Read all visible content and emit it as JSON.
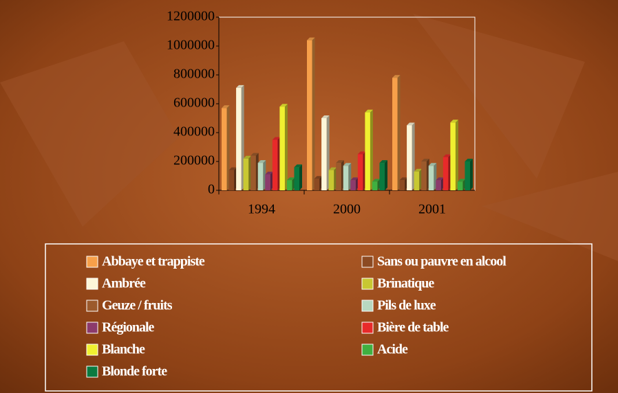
{
  "chart_data": {
    "type": "bar",
    "categories": [
      "1994",
      "2000",
      "2001"
    ],
    "series": [
      {
        "name": "Abbaye et trappiste",
        "color": "#f7a04a",
        "values": [
          570000,
          1040000,
          780000
        ]
      },
      {
        "name": "Sans ou pauvre en alcool",
        "color": "#8c4a22",
        "values": [
          140000,
          80000,
          70000
        ]
      },
      {
        "name": "Ambrée",
        "color": "#fdf6d8",
        "values": [
          710000,
          500000,
          450000
        ]
      },
      {
        "name": "Brinatique",
        "color": "#c8c832",
        "values": [
          220000,
          140000,
          130000
        ]
      },
      {
        "name": "Geuze / fruits",
        "color": "#9c5a2c",
        "values": [
          240000,
          190000,
          200000
        ]
      },
      {
        "name": "Pils de luxe",
        "color": "#b8d8c0",
        "values": [
          190000,
          170000,
          170000
        ]
      },
      {
        "name": "Régionale",
        "color": "#8c3a6c",
        "values": [
          110000,
          70000,
          70000
        ]
      },
      {
        "name": "Bière de table",
        "color": "#e82a2a",
        "values": [
          350000,
          250000,
          230000
        ]
      },
      {
        "name": "Blanche",
        "color": "#f0f030",
        "values": [
          580000,
          540000,
          470000
        ]
      },
      {
        "name": "Acide",
        "color": "#40b040",
        "values": [
          70000,
          60000,
          60000
        ]
      },
      {
        "name": "Blonde forte",
        "color": "#0a7a40",
        "values": [
          160000,
          190000,
          200000
        ]
      }
    ],
    "ylim": [
      0,
      1200000
    ],
    "yticks": [
      0,
      200000,
      400000,
      600000,
      800000,
      1000000,
      1200000
    ]
  }
}
